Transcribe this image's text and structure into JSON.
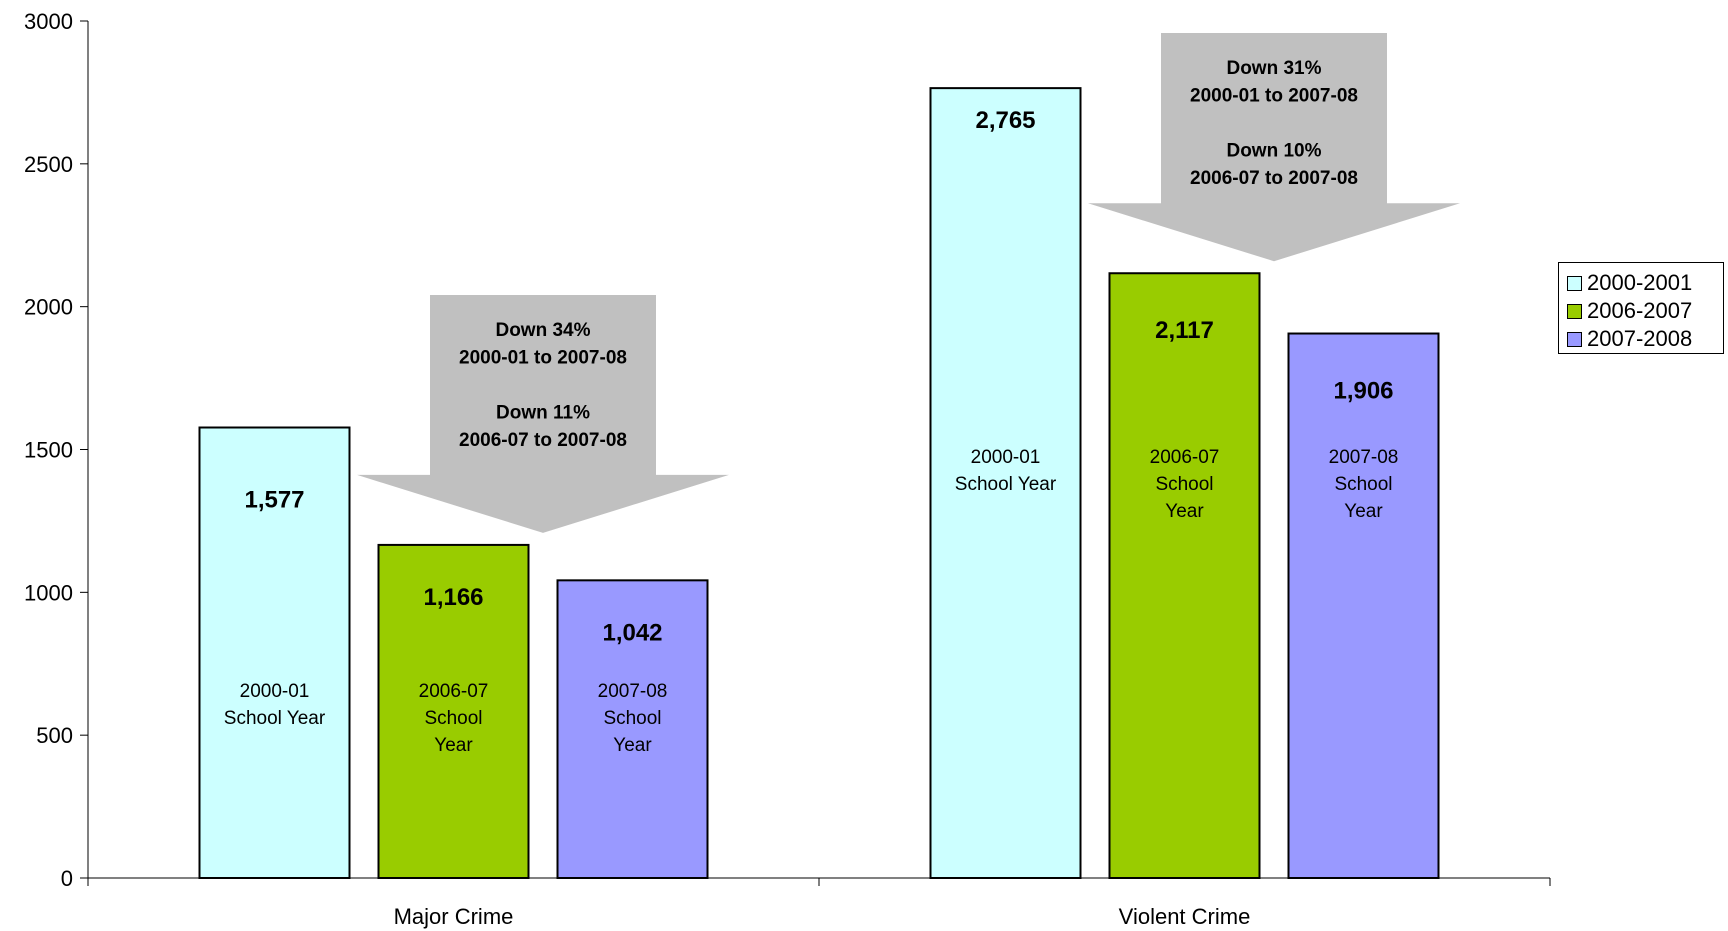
{
  "chart_data": {
    "type": "bar",
    "categories": [
      "Major Crime",
      "Violent Crime"
    ],
    "series": [
      {
        "name": "2000-2001",
        "color": "#ccffff",
        "values": [
          1577,
          2765
        ],
        "value_labels": [
          "1,577",
          "2,765"
        ],
        "bar_text": [
          "2000-01\nSchool Year",
          "2000-01\nSchool Year"
        ]
      },
      {
        "name": "2006-2007",
        "color": "#99cc00",
        "values": [
          1166,
          2117
        ],
        "value_labels": [
          "1,166",
          "2,117"
        ],
        "bar_text": [
          "2006-07\nSchool\nYear",
          "2006-07\nSchool\nYear"
        ]
      },
      {
        "name": "2007-2008",
        "color": "#9999ff",
        "values": [
          1042,
          1906
        ],
        "value_labels": [
          "1,042",
          "1,906"
        ],
        "bar_text": [
          "2007-08\nSchool\nYear",
          "2007-08\nSchool\nYear"
        ]
      }
    ],
    "y_ticks": [
      0,
      500,
      1000,
      1500,
      2000,
      2500,
      3000
    ],
    "ylim": [
      0,
      3000
    ],
    "grid": false,
    "legend_position": "right",
    "annotations": [
      {
        "category": "Major Crime",
        "style": "down-arrow",
        "color": "#c0c0c0",
        "lines": [
          "Down 34%",
          "2000-01 to 2007-08",
          "",
          "Down 11%",
          "2006-07 to 2007-08"
        ]
      },
      {
        "category": "Violent Crime",
        "style": "down-arrow",
        "color": "#c0c0c0",
        "lines": [
          "Down 31%",
          "2000-01 to 2007-08",
          "",
          "Down 10%",
          "2006-07 to 2007-08"
        ]
      }
    ]
  }
}
